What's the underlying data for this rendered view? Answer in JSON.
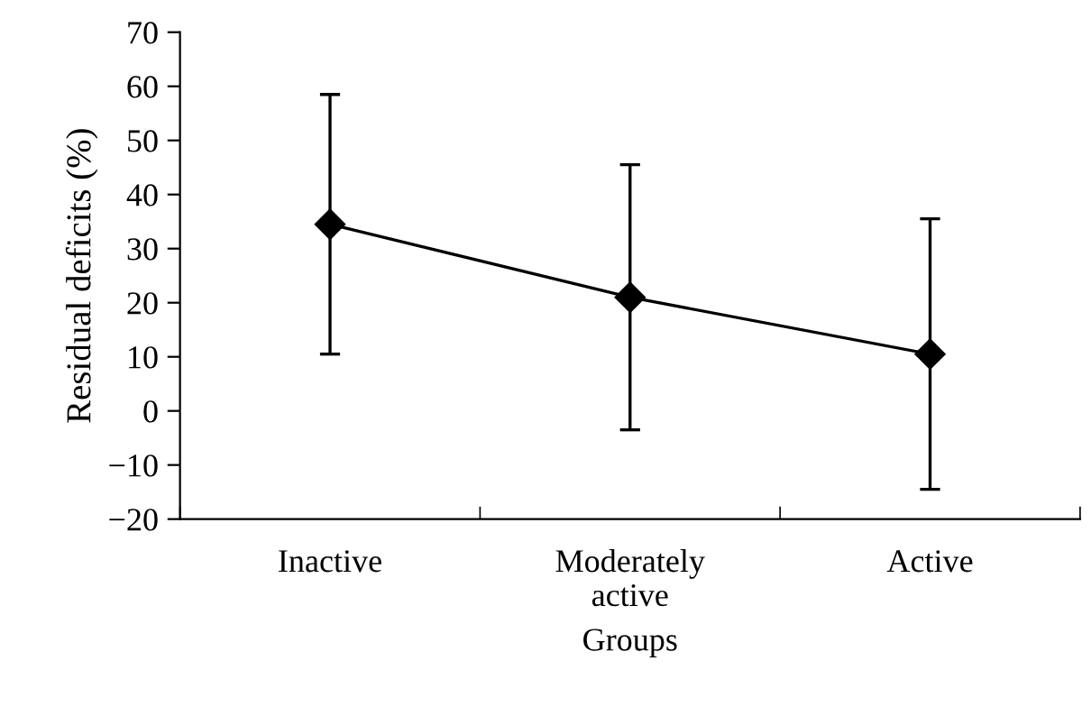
{
  "chart_data": {
    "type": "line",
    "xlabel": "Groups",
    "ylabel": "Residual deficits (%)",
    "categories": [
      "Inactive",
      "Moderately\nactive",
      "Active"
    ],
    "series": [
      {
        "color": "#000000",
        "values": [
          34.5,
          21,
          10.5
        ],
        "errors": [
          24,
          24.5,
          25
        ]
      }
    ],
    "ylim": [
      -20,
      70
    ],
    "yticks": [
      -20,
      -10,
      0,
      10,
      20,
      30,
      40,
      50,
      60,
      70
    ],
    "marker": "diamond",
    "line_style": "solid",
    "grid": false,
    "legend": false
  }
}
